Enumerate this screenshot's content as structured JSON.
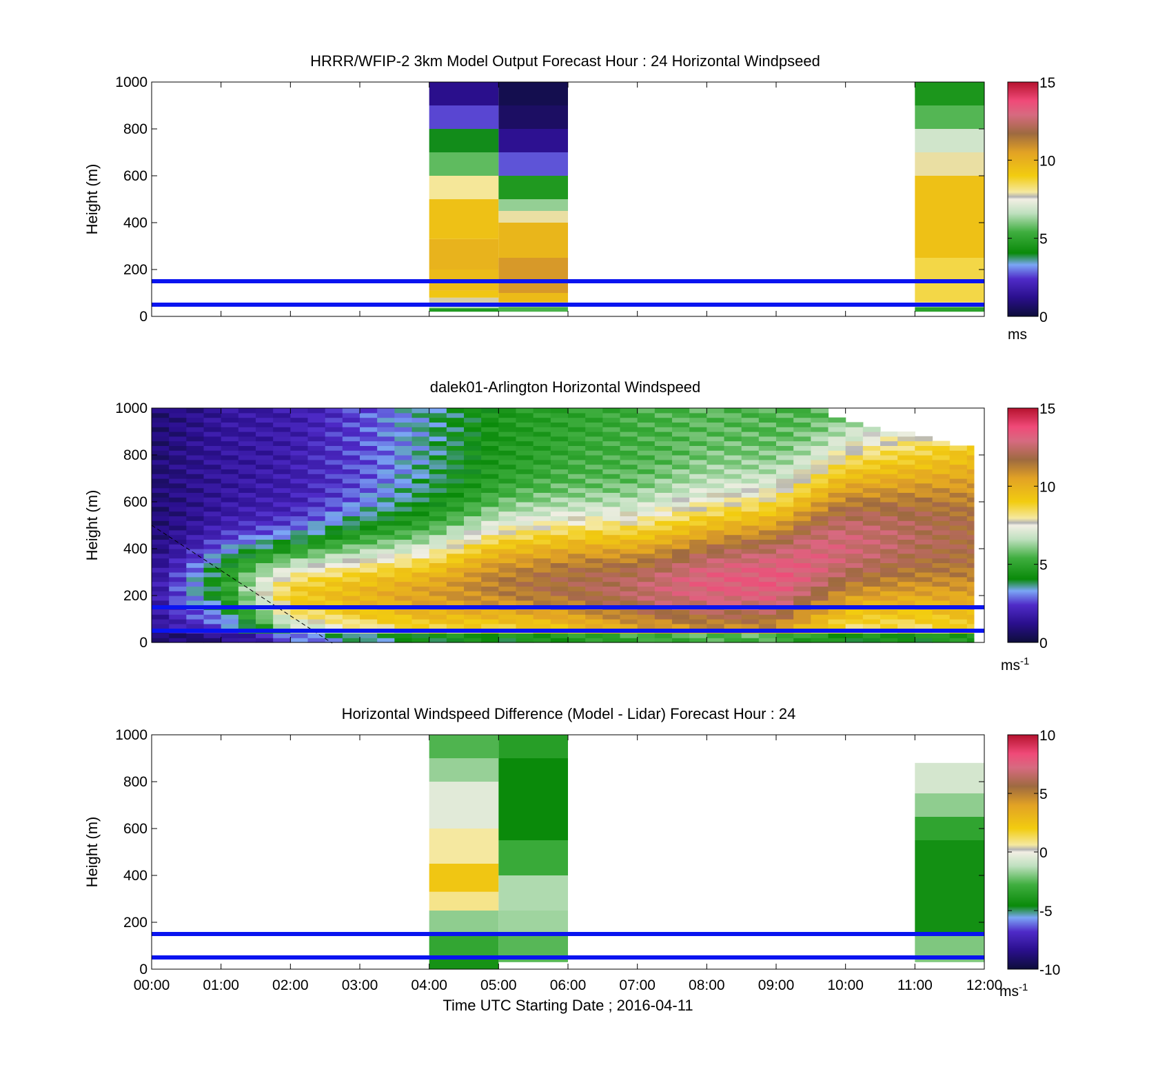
{
  "figure": {
    "xlabel": "Time UTC  Starting Date ; 2016-04-11",
    "x_ticks": [
      "00:00",
      "01:00",
      "02:00",
      "03:00",
      "04:00",
      "05:00",
      "06:00",
      "07:00",
      "08:00",
      "09:00",
      "10:00",
      "11:00",
      "12:00"
    ]
  },
  "chart_data": [
    {
      "type": "heatmap",
      "title": "HRRR/WFIP-2 3km Model Output   Forecast Hour : 24 Horizontal Windpseed",
      "ylabel": "Height (m)",
      "xlim": [
        0,
        12
      ],
      "ylim": [
        0,
        1000
      ],
      "y_ticks": [
        "0",
        "200",
        "400",
        "600",
        "800",
        "1000"
      ],
      "reference_lines_m": [
        50,
        150
      ],
      "colorbar": {
        "range": [
          0,
          15
        ],
        "ticks": [
          "0",
          "5",
          "10",
          "15"
        ],
        "unit": "ms",
        "unit_sup": ""
      },
      "columns": [
        {
          "x_start": 4,
          "x_end": 5,
          "levels": [
            {
              "y0": 20,
              "y1": 35,
              "v": 4.6
            },
            {
              "y0": 35,
              "y1": 55,
              "v": 6.5
            },
            {
              "y0": 55,
              "y1": 80,
              "v": 7.8
            },
            {
              "y0": 80,
              "y1": 110,
              "v": 9.2
            },
            {
              "y0": 110,
              "y1": 200,
              "v": 9.6
            },
            {
              "y0": 200,
              "y1": 330,
              "v": 9.9
            },
            {
              "y0": 330,
              "y1": 500,
              "v": 9.4
            },
            {
              "y0": 500,
              "y1": 600,
              "v": 8.0
            },
            {
              "y0": 600,
              "y1": 700,
              "v": 5.7
            },
            {
              "y0": 700,
              "y1": 800,
              "v": 4.0
            },
            {
              "y0": 800,
              "y1": 900,
              "v": 2.6
            },
            {
              "y0": 900,
              "y1": 1000,
              "v": 1.2
            }
          ]
        },
        {
          "x_start": 5,
          "x_end": 6,
          "levels": [
            {
              "y0": 20,
              "y1": 40,
              "v": 5.5
            },
            {
              "y0": 40,
              "y1": 60,
              "v": 7.8
            },
            {
              "y0": 60,
              "y1": 100,
              "v": 9.6
            },
            {
              "y0": 100,
              "y1": 250,
              "v": 10.7
            },
            {
              "y0": 250,
              "y1": 400,
              "v": 9.8
            },
            {
              "y0": 400,
              "y1": 450,
              "v": 7.9
            },
            {
              "y0": 450,
              "y1": 500,
              "v": 6.2
            },
            {
              "y0": 500,
              "y1": 600,
              "v": 4.6
            },
            {
              "y0": 600,
              "y1": 700,
              "v": 2.7
            },
            {
              "y0": 700,
              "y1": 800,
              "v": 1.3
            },
            {
              "y0": 800,
              "y1": 900,
              "v": 0.6
            },
            {
              "y0": 900,
              "y1": 1000,
              "v": 0.3
            }
          ]
        },
        {
          "x_start": 11,
          "x_end": 12,
          "levels": [
            {
              "y0": 20,
              "y1": 40,
              "v": 4.9
            },
            {
              "y0": 40,
              "y1": 60,
              "v": 7.5
            },
            {
              "y0": 60,
              "y1": 250,
              "v": 8.6
            },
            {
              "y0": 250,
              "y1": 600,
              "v": 9.4
            },
            {
              "y0": 600,
              "y1": 700,
              "v": 7.9
            },
            {
              "y0": 700,
              "y1": 800,
              "v": 6.9
            },
            {
              "y0": 800,
              "y1": 900,
              "v": 5.6
            },
            {
              "y0": 900,
              "y1": 1000,
              "v": 4.5
            }
          ]
        }
      ]
    },
    {
      "type": "heatmap",
      "title": "dalek01-Arlington  Horizontal Windspeed",
      "ylabel": "Height (m)",
      "xlim": [
        0,
        12
      ],
      "ylim": [
        0,
        1000
      ],
      "y_ticks": [
        "0",
        "200",
        "400",
        "600",
        "800",
        "1000"
      ],
      "reference_lines_m": [
        50,
        150
      ],
      "colorbar": {
        "range": [
          0,
          15
        ],
        "ticks": [
          "0",
          "5",
          "10",
          "15"
        ],
        "unit": "ms",
        "unit_sup": "-1"
      },
      "profile_time_step_h": 0.25,
      "profile_valid_until_h": 11.85,
      "description_model": "profiles: weak flow early, low-level jet strengthening to ~12-13 m/s below ~600 m after 06:00",
      "snapshots": [
        {
          "t": 0.0,
          "jet_center": 200,
          "jet_speed": 1.5,
          "jet_depth": 300,
          "upper_speed": 0.8
        },
        {
          "t": 1.0,
          "jet_center": 250,
          "jet_speed": 4.5,
          "jet_depth": 300,
          "upper_speed": 1.5
        },
        {
          "t": 2.0,
          "jet_center": 200,
          "jet_speed": 9.0,
          "jet_depth": 350,
          "upper_speed": 1.8
        },
        {
          "t": 3.0,
          "jet_center": 200,
          "jet_speed": 9.8,
          "jet_depth": 400,
          "upper_speed": 2.6
        },
        {
          "t": 4.0,
          "jet_center": 200,
          "jet_speed": 10.5,
          "jet_depth": 420,
          "upper_speed": 3.6
        },
        {
          "t": 5.0,
          "jet_center": 250,
          "jet_speed": 11.3,
          "jet_depth": 450,
          "upper_speed": 4.5
        },
        {
          "t": 6.0,
          "jet_center": 250,
          "jet_speed": 11.8,
          "jet_depth": 470,
          "upper_speed": 5.0
        },
        {
          "t": 7.0,
          "jet_center": 230,
          "jet_speed": 12.4,
          "jet_depth": 480,
          "upper_speed": 5.3
        },
        {
          "t": 8.0,
          "jet_center": 250,
          "jet_speed": 13.2,
          "jet_depth": 520,
          "upper_speed": 5.6
        },
        {
          "t": 9.0,
          "jet_center": 270,
          "jet_speed": 13.4,
          "jet_depth": 560,
          "upper_speed": 5.4
        },
        {
          "t": 10.0,
          "jet_center": 420,
          "jet_speed": 12.8,
          "jet_depth": 650,
          "upper_speed": 5.0
        },
        {
          "t": 11.0,
          "jet_center": 450,
          "jet_speed": 12.2,
          "jet_depth": 700,
          "upper_speed": 5.5
        },
        {
          "t": 11.85,
          "jet_center": 450,
          "jet_speed": 11.8,
          "jet_depth": 700,
          "upper_speed": 7.0
        }
      ]
    },
    {
      "type": "heatmap",
      "title": "Horizontal Windspeed Difference (Model - Lidar) Forecast Hour : 24",
      "ylabel": "Height (m)",
      "xlim": [
        0,
        12
      ],
      "ylim": [
        0,
        1000
      ],
      "y_ticks": [
        "0",
        "200",
        "400",
        "600",
        "800",
        "1000"
      ],
      "reference_lines_m": [
        50,
        150
      ],
      "colorbar": {
        "range": [
          -10,
          10
        ],
        "ticks": [
          "-10",
          "-5",
          "0",
          "5",
          "10"
        ],
        "unit": "ms",
        "unit_sup": "-1"
      },
      "columns": [
        {
          "x_start": 4,
          "x_end": 5,
          "levels": [
            {
              "y0": 0,
              "y1": 50,
              "v": -4.2
            },
            {
              "y0": 50,
              "y1": 150,
              "v": -3.2
            },
            {
              "y0": 150,
              "y1": 250,
              "v": -1.8
            },
            {
              "y0": 250,
              "y1": 330,
              "v": 0.8
            },
            {
              "y0": 330,
              "y1": 450,
              "v": 2.3
            },
            {
              "y0": 450,
              "y1": 600,
              "v": 0.6
            },
            {
              "y0": 600,
              "y1": 800,
              "v": -0.4
            },
            {
              "y0": 800,
              "y1": 900,
              "v": -1.7
            },
            {
              "y0": 900,
              "y1": 1000,
              "v": -2.6
            }
          ]
        },
        {
          "x_start": 5,
          "x_end": 6,
          "levels": [
            {
              "y0": 30,
              "y1": 150,
              "v": -2.5
            },
            {
              "y0": 150,
              "y1": 250,
              "v": -1.6
            },
            {
              "y0": 250,
              "y1": 400,
              "v": -1.4
            },
            {
              "y0": 400,
              "y1": 550,
              "v": -3.0
            },
            {
              "y0": 550,
              "y1": 900,
              "v": -4.6
            },
            {
              "y0": 900,
              "y1": 1000,
              "v": -3.6
            }
          ]
        },
        {
          "x_start": 11,
          "x_end": 12,
          "levels": [
            {
              "y0": 30,
              "y1": 150,
              "v": -2.0
            },
            {
              "y0": 150,
              "y1": 550,
              "v": -4.3
            },
            {
              "y0": 550,
              "y1": 650,
              "v": -3.3
            },
            {
              "y0": 650,
              "y1": 750,
              "v": -1.8
            },
            {
              "y0": 750,
              "y1": 880,
              "v": -0.7
            }
          ]
        }
      ]
    }
  ]
}
